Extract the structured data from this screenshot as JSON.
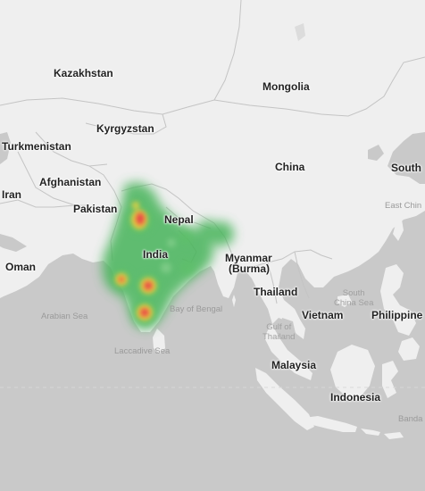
{
  "map": {
    "colors": {
      "water": "#c9c9c9",
      "land": "#efefef",
      "border": "#c4c4c4",
      "heat_low": "#46b45a",
      "heat_mid": "#f0d23c",
      "heat_high": "#e8404a"
    },
    "labels": {
      "kazakhstan": "Kazakhstan",
      "mongolia": "Mongolia",
      "kyrgyzstan": "Kyrgyzstan",
      "turkmenistan": "Turkmenistan",
      "china": "China",
      "south": "South",
      "iran": "Iran",
      "afghanistan": "Afghanistan",
      "pakistan": "Pakistan",
      "nepal": "Nepal",
      "east_china": "East Chin",
      "india": "India",
      "oman": "Oman",
      "myanmar": "Myanmar",
      "burma": "(Burma)",
      "thailand": "Thailand",
      "south_china_sea": "South\nChina Sea",
      "arabian_sea": "Arabian Sea",
      "bay_of_bengal": "Bay of Bengal",
      "vietnam": "Vietnam",
      "philippines": "Philippine",
      "gulf_of_thailand": "Gulf of\nThailand",
      "laccadive_sea": "Laccadive Sea",
      "malaysia": "Malaysia",
      "indonesia": "Indonesia",
      "banda": "Banda"
    }
  }
}
